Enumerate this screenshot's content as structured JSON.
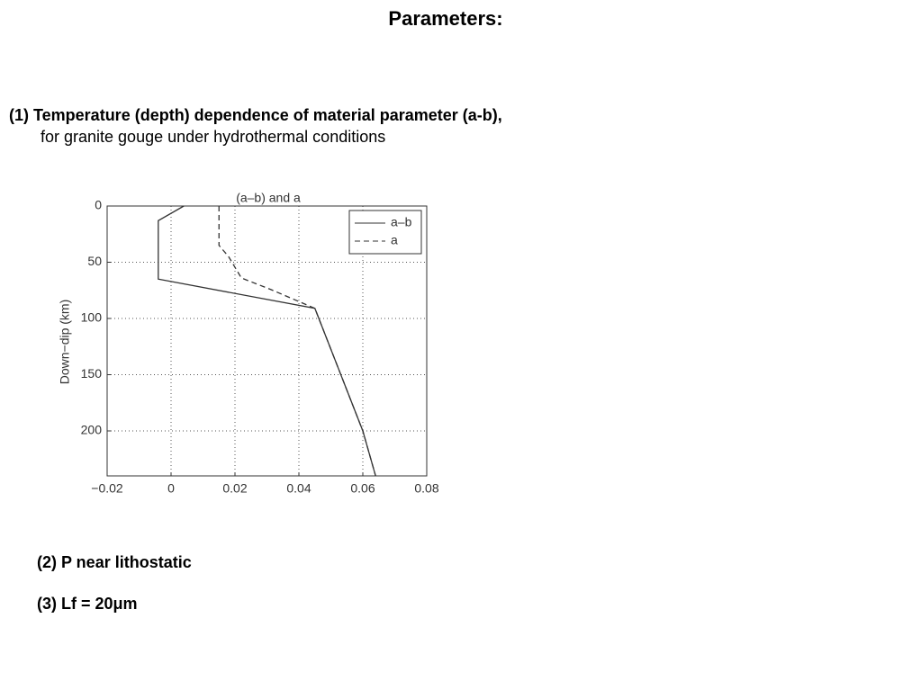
{
  "title": "Parameters:",
  "items": [
    {
      "heading": "(1) Temperature (depth) dependence of material parameter (a-b),",
      "detail": "for granite gouge under hydrothermal conditions"
    },
    {
      "heading": "(2) P near lithostatic"
    },
    {
      "heading": "(3) Lf = 20μm"
    }
  ],
  "chart_data": {
    "type": "line",
    "title": "(a–b) and a",
    "ylabel": "Down−dip (km)",
    "xlim": [
      -0.02,
      0.08
    ],
    "xticks": [
      {
        "value": -0.02,
        "label": "−0.02"
      },
      0,
      0.02,
      0.04,
      0.06,
      0.08
    ],
    "ylim": [
      0,
      240
    ],
    "yticks": [
      0,
      50,
      100,
      150,
      200
    ],
    "y_inverted": true,
    "grid": true,
    "legend": "top-right",
    "series": [
      {
        "name": "a–b",
        "color": "#333333",
        "dashed": false,
        "values": [
          0.004,
          -0.004,
          -0.004,
          0.045,
          0.06,
          0.064
        ],
        "depth": [
          0,
          13,
          65,
          91,
          200,
          240
        ]
      },
      {
        "name": "a",
        "color": "#333333",
        "dashed": true,
        "values": [
          0.015,
          0.015,
          0.018,
          0.022,
          0.031,
          0.045,
          0.06,
          0.064
        ],
        "depth": [
          0,
          35,
          45,
          64,
          74,
          91,
          200,
          240
        ]
      }
    ]
  }
}
